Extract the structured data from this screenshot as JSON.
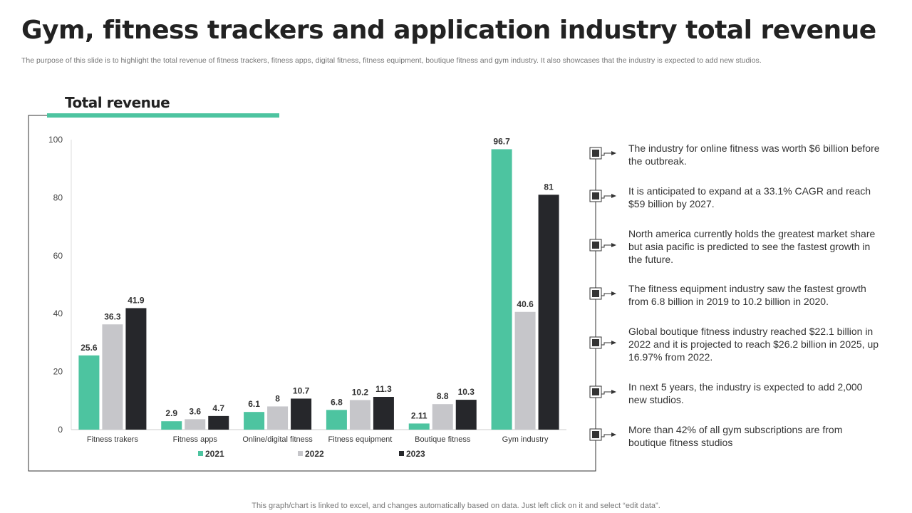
{
  "title": "Gym, fitness trackers and application industry total revenue",
  "subtitle": "The purpose of this slide is to highlight the total revenue of fitness trackers, fitness apps, digital fitness, fitness equipment, boutique fitness and gym industry. It also showcases that the industry is expected to add new studios.",
  "chart_title": "Total revenue",
  "chart_data": {
    "type": "bar",
    "title": "Total revenue",
    "categories": [
      "Fitness trakers",
      "Fitness apps",
      "Online/digital fitness",
      "Fitness equipment",
      "Boutique fitness",
      "Gym industry"
    ],
    "series": [
      {
        "name": "2021",
        "color": "#4DC4A0",
        "values": [
          25.6,
          2.9,
          6.1,
          6.8,
          2.11,
          96.7
        ]
      },
      {
        "name": "2022",
        "color": "#C6C6CA",
        "values": [
          36.3,
          3.6,
          8,
          10.2,
          8.8,
          40.6
        ]
      },
      {
        "name": "2023",
        "color": "#26272B",
        "values": [
          41.9,
          4.7,
          10.7,
          11.3,
          10.3,
          81
        ]
      }
    ],
    "yticks": [
      0,
      20,
      40,
      60,
      80,
      100
    ],
    "ylim": [
      0,
      100
    ],
    "legend": "bottom",
    "grid": false
  },
  "notes": [
    "The industry for online fitness was worth $6 billion before the outbreak.",
    "It is anticipated to expand at a 33.1% CAGR and reach $59 billion by 2027.",
    "North america currently holds the greatest market share but asia pacific is predicted to see the fastest growth in the future.",
    "The fitness equipment industry saw the fastest growth from 6.8 billion in 2019 to 10.2 billion in 2020.",
    "Global boutique fitness industry reached $22.1 billion in 2022 and it is projected to reach $26.2 billion in 2025, up 16.97% from 2022.",
    "In next 5 years, the industry is expected to add 2,000 new studios.",
    "More than 42% of all gym subscriptions are from boutique fitness studios"
  ],
  "footer": "This graph/chart is linked to excel, and changes automatically based on data. Just left click on it and select “edit data”."
}
